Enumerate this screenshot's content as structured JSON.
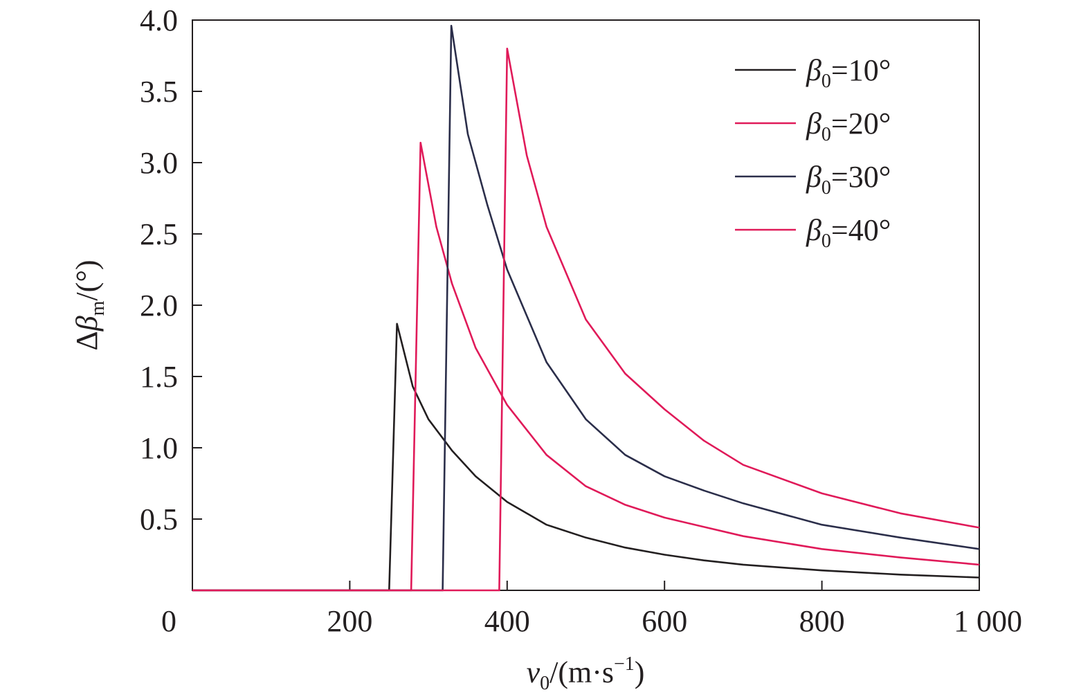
{
  "chart_data": {
    "type": "line",
    "xlabel": {
      "sym": "v",
      "sub": "0",
      "unit": "/(m·s",
      "sup": "−1",
      "close": ")"
    },
    "ylabel": {
      "prefix": "Δ",
      "sym": "β",
      "sub": "m",
      "unit": "/(°)"
    },
    "xlim": [
      0,
      1000
    ],
    "ylim": [
      0,
      4.0
    ],
    "x_ticks": [
      {
        "value": 0,
        "label": "0"
      },
      {
        "value": 200,
        "label": "200"
      },
      {
        "value": 400,
        "label": "400"
      },
      {
        "value": 600,
        "label": "600"
      },
      {
        "value": 800,
        "label": "800"
      },
      {
        "value": 1000,
        "label": "1 000"
      }
    ],
    "y_ticks": [
      {
        "value": 0.5,
        "label": "0.5"
      },
      {
        "value": 1.0,
        "label": "1.0"
      },
      {
        "value": 1.5,
        "label": "1.5"
      },
      {
        "value": 2.0,
        "label": "2.0"
      },
      {
        "value": 2.5,
        "label": "2.5"
      },
      {
        "value": 3.0,
        "label": "3.0"
      },
      {
        "value": 3.5,
        "label": "3.5"
      },
      {
        "value": 4.0,
        "label": "4.0"
      }
    ],
    "grid": false,
    "legend_position": "top-right",
    "series": [
      {
        "name": "β0=10°",
        "legend": {
          "sym": "β",
          "sub": "0",
          "rest": "=10°"
        },
        "color": "#231f20",
        "x": [
          0,
          250,
          260,
          280,
          300,
          330,
          360,
          400,
          450,
          500,
          550,
          600,
          650,
          700,
          800,
          900,
          1000
        ],
        "y": [
          0,
          0,
          1.87,
          1.43,
          1.2,
          0.98,
          0.8,
          0.62,
          0.46,
          0.37,
          0.3,
          0.25,
          0.21,
          0.18,
          0.14,
          0.11,
          0.09
        ]
      },
      {
        "name": "β0=20°",
        "legend": {
          "sym": "β",
          "sub": "0",
          "rest": "=20°"
        },
        "color": "#e01a59",
        "x": [
          0,
          278,
          290,
          310,
          330,
          360,
          400,
          450,
          500,
          550,
          600,
          700,
          800,
          900,
          1000
        ],
        "y": [
          0,
          0,
          3.14,
          2.55,
          2.15,
          1.7,
          1.3,
          0.95,
          0.73,
          0.6,
          0.51,
          0.38,
          0.29,
          0.23,
          0.18
        ]
      },
      {
        "name": "β0=30°",
        "legend": {
          "sym": "β",
          "sub": "0",
          "rest": "=30°"
        },
        "color": "#2b2e4a",
        "x": [
          0,
          318,
          329,
          350,
          375,
          400,
          450,
          500,
          550,
          600,
          650,
          700,
          800,
          900,
          1000
        ],
        "y": [
          0,
          0,
          3.96,
          3.2,
          2.7,
          2.25,
          1.6,
          1.2,
          0.95,
          0.8,
          0.7,
          0.61,
          0.46,
          0.37,
          0.29
        ]
      },
      {
        "name": "β0=40°",
        "legend": {
          "sym": "β",
          "sub": "0",
          "rest": "=40°"
        },
        "color": "#e01a59",
        "x": [
          0,
          390,
          400,
          425,
          450,
          500,
          550,
          600,
          650,
          700,
          800,
          900,
          1000
        ],
        "y": [
          0,
          0,
          3.8,
          3.05,
          2.55,
          1.9,
          1.52,
          1.27,
          1.05,
          0.88,
          0.68,
          0.54,
          0.44
        ]
      }
    ]
  }
}
